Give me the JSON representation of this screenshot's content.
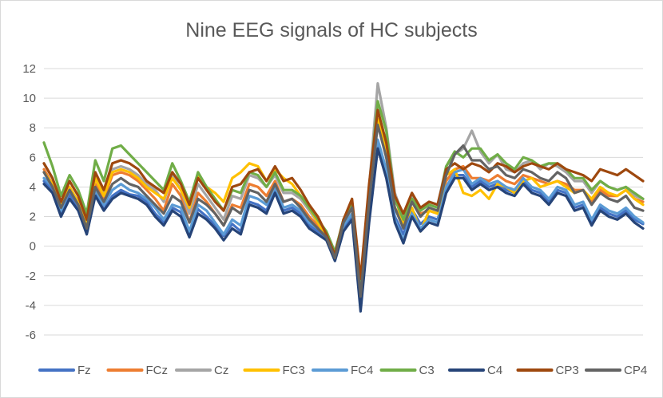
{
  "chart_data": {
    "type": "line",
    "title": "Nine EEG signals of HC subjects",
    "xlabel": "",
    "ylabel": "",
    "ylim": [
      -6,
      12
    ],
    "yticks": [
      12,
      10,
      8,
      6,
      4,
      2,
      0,
      -2,
      -4,
      -6
    ],
    "grid": true,
    "legend_position": "bottom",
    "x": [
      0,
      1,
      2,
      3,
      4,
      5,
      6,
      7,
      8,
      9,
      10,
      11,
      12,
      13,
      14,
      15,
      16,
      17,
      18,
      19,
      20,
      21,
      22,
      23,
      24,
      25,
      26,
      27,
      28,
      29,
      30,
      31,
      32,
      33,
      34,
      35,
      36,
      37,
      38,
      39,
      40,
      41,
      42,
      43,
      44,
      45,
      46,
      47,
      48,
      49,
      50,
      51,
      52,
      53,
      54,
      55,
      56,
      57,
      58,
      59,
      60,
      61,
      62,
      63,
      64,
      65,
      66,
      67,
      68,
      69,
      70
    ],
    "series": [
      {
        "name": "Fz",
        "color": "#4472C4",
        "values": [
          4.4,
          3.8,
          2.2,
          3.5,
          2.6,
          1.0,
          3.6,
          2.5,
          3.4,
          3.8,
          3.5,
          3.4,
          3.0,
          2.2,
          1.6,
          2.6,
          2.3,
          0.8,
          2.5,
          2.0,
          1.4,
          0.7,
          1.5,
          1.0,
          3.0,
          2.8,
          2.4,
          3.8,
          2.4,
          2.6,
          2.2,
          1.4,
          1.0,
          0.6,
          -0.8,
          1.2,
          2.0,
          -4.0,
          2.0,
          7.0,
          5.0,
          2.0,
          0.8,
          2.5,
          1.5,
          2.0,
          1.8,
          3.8,
          4.8,
          4.8,
          4.0,
          4.4,
          4.0,
          4.2,
          3.8,
          3.6,
          4.4,
          3.8,
          3.6,
          3.0,
          3.8,
          3.6,
          2.6,
          2.8,
          1.6,
          2.6,
          2.2,
          2.0,
          2.4,
          1.8,
          1.5
        ]
      },
      {
        "name": "FCz",
        "color": "#ED7D31",
        "values": [
          5.2,
          4.2,
          2.6,
          4.0,
          3.0,
          1.4,
          4.2,
          3.2,
          4.8,
          5.0,
          4.8,
          4.4,
          3.8,
          3.2,
          2.4,
          4.2,
          3.4,
          1.6,
          3.6,
          3.0,
          2.2,
          1.4,
          2.8,
          2.6,
          4.2,
          4.0,
          3.4,
          4.4,
          3.0,
          3.2,
          2.8,
          2.0,
          1.4,
          0.8,
          -0.6,
          1.6,
          2.6,
          -3.0,
          3.2,
          8.4,
          6.0,
          2.6,
          1.6,
          3.0,
          2.2,
          2.4,
          2.2,
          4.4,
          5.2,
          5.4,
          4.6,
          4.6,
          4.4,
          4.8,
          4.4,
          4.2,
          4.8,
          4.6,
          4.4,
          4.2,
          4.4,
          4.2,
          3.8,
          3.8,
          3.0,
          3.8,
          3.4,
          3.4,
          3.8,
          3.2,
          3.0
        ]
      },
      {
        "name": "Cz",
        "color": "#A5A5A5",
        "values": [
          5.6,
          4.6,
          3.0,
          4.4,
          3.4,
          1.8,
          4.8,
          3.6,
          5.2,
          5.4,
          5.2,
          4.8,
          4.2,
          3.8,
          3.0,
          4.8,
          3.8,
          2.2,
          4.2,
          3.4,
          2.6,
          1.8,
          3.4,
          3.2,
          4.8,
          4.6,
          4.0,
          4.8,
          3.6,
          3.6,
          3.2,
          2.4,
          1.6,
          1.0,
          -0.4,
          1.8,
          3.0,
          -2.6,
          4.0,
          11.0,
          8.0,
          3.6,
          2.0,
          3.4,
          2.6,
          3.0,
          2.8,
          5.4,
          6.2,
          6.6,
          7.8,
          6.4,
          5.6,
          6.2,
          5.2,
          5.0,
          5.6,
          5.8,
          5.2,
          5.6,
          5.4,
          5.0,
          4.4,
          4.4,
          3.6,
          4.4,
          4.0,
          3.8,
          4.0,
          3.4,
          3.2
        ]
      },
      {
        "name": "FC3",
        "color": "#FFC000",
        "values": [
          5.0,
          4.2,
          2.8,
          4.0,
          3.0,
          1.6,
          4.6,
          3.4,
          5.0,
          5.2,
          5.0,
          4.6,
          4.0,
          3.6,
          3.2,
          4.6,
          3.8,
          2.6,
          4.8,
          4.0,
          3.6,
          3.0,
          4.6,
          5.0,
          5.6,
          5.4,
          4.4,
          5.2,
          4.6,
          4.2,
          3.4,
          2.6,
          1.6,
          0.6,
          -0.6,
          1.6,
          2.8,
          -2.8,
          3.6,
          8.6,
          6.6,
          3.4,
          1.4,
          2.6,
          1.0,
          2.4,
          2.2,
          4.8,
          5.2,
          3.6,
          3.4,
          3.8,
          3.2,
          4.2,
          4.0,
          3.6,
          4.4,
          4.6,
          4.0,
          4.2,
          4.4,
          4.0,
          3.6,
          3.8,
          3.2,
          4.0,
          3.6,
          3.4,
          3.8,
          3.2,
          2.8
        ]
      },
      {
        "name": "FC4",
        "color": "#5B9BD5",
        "values": [
          4.6,
          4.0,
          2.4,
          3.8,
          2.8,
          1.2,
          3.8,
          2.8,
          3.8,
          4.2,
          3.8,
          3.6,
          3.2,
          2.6,
          1.8,
          2.8,
          2.6,
          1.0,
          2.8,
          2.4,
          1.6,
          0.8,
          1.8,
          1.4,
          3.4,
          3.2,
          2.8,
          4.0,
          2.6,
          2.8,
          2.4,
          1.6,
          1.2,
          0.6,
          -0.8,
          1.4,
          2.2,
          -4.2,
          2.2,
          7.2,
          5.2,
          1.8,
          0.4,
          2.2,
          1.2,
          1.8,
          1.6,
          4.0,
          5.0,
          5.2,
          4.2,
          4.6,
          4.2,
          4.4,
          4.0,
          3.8,
          4.6,
          4.0,
          3.8,
          3.2,
          4.0,
          3.8,
          2.8,
          3.0,
          1.8,
          2.8,
          2.4,
          2.2,
          2.6,
          2.0,
          1.6
        ]
      },
      {
        "name": "C3",
        "color": "#70AD47",
        "values": [
          7.0,
          5.4,
          3.4,
          4.8,
          3.8,
          2.2,
          5.8,
          4.4,
          6.6,
          6.8,
          6.2,
          5.6,
          5.0,
          4.4,
          3.8,
          5.6,
          4.4,
          3.0,
          5.0,
          4.0,
          3.2,
          2.4,
          3.8,
          3.6,
          5.0,
          4.8,
          4.0,
          5.0,
          3.8,
          3.8,
          3.4,
          2.6,
          1.8,
          1.0,
          -0.4,
          1.8,
          3.0,
          -2.6,
          3.8,
          9.8,
          7.8,
          3.2,
          1.8,
          3.2,
          2.4,
          2.8,
          2.6,
          5.4,
          6.4,
          6.0,
          6.6,
          6.6,
          5.8,
          6.2,
          5.6,
          5.2,
          6.0,
          5.8,
          5.4,
          5.6,
          5.6,
          5.2,
          4.6,
          4.6,
          3.8,
          4.4,
          4.0,
          3.8,
          4.0,
          3.6,
          3.2
        ]
      },
      {
        "name": "C4",
        "color": "#264478",
        "values": [
          4.2,
          3.6,
          2.0,
          3.2,
          2.4,
          0.8,
          3.4,
          2.4,
          3.2,
          3.6,
          3.4,
          3.2,
          2.8,
          2.0,
          1.4,
          2.4,
          2.0,
          0.6,
          2.2,
          1.8,
          1.2,
          0.4,
          1.2,
          0.8,
          2.8,
          2.6,
          2.2,
          3.6,
          2.2,
          2.4,
          2.0,
          1.2,
          0.8,
          0.4,
          -1.0,
          1.0,
          1.8,
          -4.4,
          1.6,
          6.6,
          4.6,
          1.6,
          0.2,
          2.0,
          1.0,
          1.6,
          1.4,
          3.6,
          4.6,
          4.6,
          3.8,
          4.2,
          3.8,
          4.0,
          3.6,
          3.4,
          4.2,
          3.6,
          3.4,
          2.8,
          3.6,
          3.4,
          2.4,
          2.6,
          1.4,
          2.4,
          2.0,
          1.8,
          2.2,
          1.6,
          1.2
        ]
      },
      {
        "name": "CP3",
        "color": "#9E480E",
        "values": [
          5.6,
          4.6,
          3.0,
          4.4,
          3.4,
          1.8,
          5.0,
          3.8,
          5.6,
          5.8,
          5.6,
          5.2,
          4.4,
          4.0,
          3.6,
          5.0,
          4.2,
          2.8,
          4.6,
          3.8,
          3.0,
          2.4,
          4.0,
          4.2,
          5.0,
          5.2,
          4.4,
          5.4,
          4.4,
          4.6,
          3.8,
          2.8,
          2.0,
          0.8,
          -0.6,
          1.8,
          3.2,
          -2.2,
          4.2,
          9.2,
          7.0,
          3.4,
          2.2,
          3.6,
          2.6,
          3.0,
          2.8,
          5.2,
          5.6,
          5.2,
          5.6,
          5.4,
          5.0,
          5.6,
          5.4,
          5.0,
          5.4,
          5.6,
          5.4,
          5.2,
          5.6,
          5.2,
          5.0,
          4.8,
          4.4,
          5.2,
          5.0,
          4.8,
          5.2,
          4.8,
          4.4
        ]
      },
      {
        "name": "CP4",
        "color": "#636363",
        "values": [
          5.0,
          4.0,
          2.6,
          3.8,
          2.8,
          1.2,
          4.0,
          3.0,
          4.2,
          4.6,
          4.2,
          4.0,
          3.4,
          2.8,
          2.2,
          3.4,
          3.0,
          1.6,
          3.2,
          2.8,
          2.2,
          1.4,
          2.6,
          2.2,
          3.8,
          3.6,
          3.0,
          4.2,
          3.0,
          3.2,
          2.6,
          1.8,
          1.2,
          0.6,
          -0.8,
          1.6,
          2.6,
          -3.4,
          3.0,
          8.2,
          6.0,
          2.6,
          1.2,
          3.0,
          2.0,
          2.6,
          2.4,
          4.8,
          6.2,
          6.8,
          5.8,
          5.8,
          5.2,
          5.4,
          4.8,
          4.6,
          5.2,
          5.0,
          4.6,
          4.4,
          5.0,
          4.6,
          3.6,
          3.8,
          2.8,
          3.6,
          3.2,
          3.0,
          3.4,
          2.6,
          2.4
        ]
      }
    ]
  }
}
